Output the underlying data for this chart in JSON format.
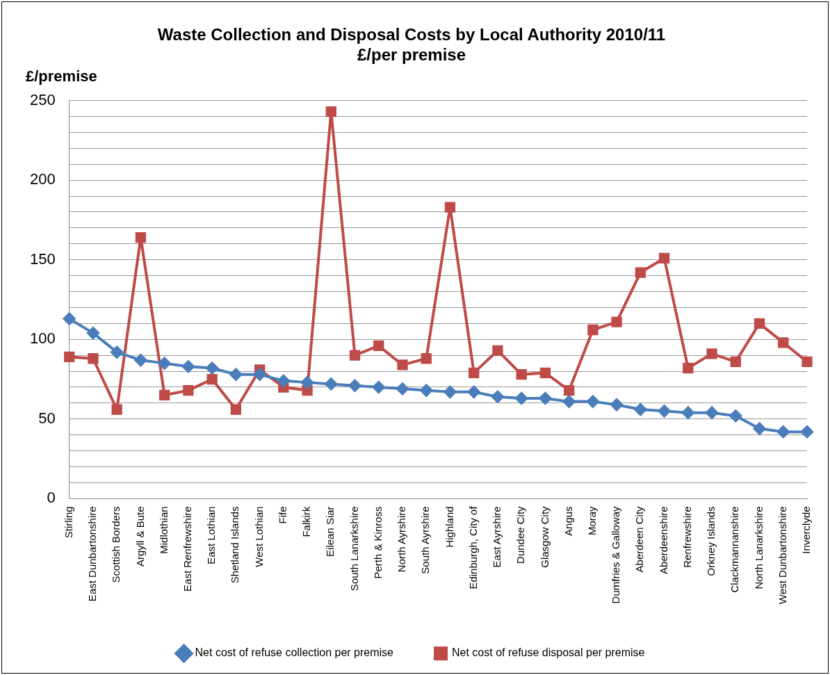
{
  "chart_data": {
    "type": "line",
    "title": [
      "Waste Collection and Disposal Costs by Local Authority 2010/11",
      "£/per premise"
    ],
    "ylabel": "£/premise",
    "categories": [
      "Stirling",
      "East Dunbartonshire",
      "Scottish Borders",
      "Argyll & Bute",
      "Midlothian",
      "East Renfrewshire",
      "East Lothian",
      "Shetland Islands",
      "West Lothian",
      "Fife",
      "Falkirk",
      "Eilean Siar",
      "South Lanarkshire",
      "Perth & Kinross",
      "North Ayrshire",
      "South Ayrshire",
      "Highland",
      "Edinburgh, City of",
      "East Ayrshire",
      "Dundee City",
      "Glasgow City",
      "Angus",
      "Moray",
      "Dumfries & Galloway",
      "Aberdeen City",
      "Aberdeenshire",
      "Renfrewshire",
      "Orkney Islands",
      "Clackmannanshire",
      "North Lanarkshire",
      "West Dunbartonshire",
      "Inverclyde"
    ],
    "series": [
      {
        "name": "Net cost of refuse collection per premise",
        "color": "#4a7ebb",
        "marker": "diamond",
        "values": [
          113,
          104,
          92,
          87,
          85,
          83,
          82,
          78,
          78,
          74,
          73,
          72,
          71,
          70,
          69,
          68,
          67,
          67,
          64,
          63,
          63,
          61,
          61,
          59,
          56,
          55,
          54,
          54,
          52,
          44,
          42,
          42
        ]
      },
      {
        "name": "Net cost of refuse disposal per premise",
        "color": "#be4b48",
        "marker": "square",
        "values": [
          89,
          88,
          56,
          164,
          65,
          68,
          75,
          56,
          81,
          70,
          68,
          243,
          90,
          96,
          84,
          88,
          183,
          79,
          93,
          78,
          79,
          68,
          106,
          111,
          142,
          151,
          82,
          91,
          86,
          110,
          98,
          86
        ]
      }
    ],
    "ylim": [
      0,
      250
    ],
    "yticks": [
      0,
      {
        "value": 10,
        "label": null
      },
      {
        "value": 20,
        "label": null
      },
      {
        "value": 30,
        "label": null
      },
      {
        "value": 40,
        "label": null
      },
      50,
      {
        "value": 60,
        "label": null
      },
      {
        "value": 70,
        "label": null
      },
      {
        "value": 80,
        "label": null
      },
      {
        "value": 90,
        "label": null
      },
      100,
      {
        "value": 110,
        "label": null
      },
      {
        "value": 120,
        "label": null
      },
      {
        "value": 130,
        "label": null
      },
      {
        "value": 140,
        "label": null
      },
      150,
      {
        "value": 160,
        "label": null
      },
      {
        "value": 170,
        "label": null
      },
      {
        "value": 180,
        "label": null
      },
      {
        "value": 190,
        "label": null
      },
      200,
      {
        "value": 210,
        "label": null
      },
      {
        "value": 220,
        "label": null
      },
      {
        "value": 230,
        "label": null
      },
      {
        "value": 240,
        "label": null
      },
      250
    ],
    "grid": "y",
    "legend": "bottom",
    "line_style": "solid"
  }
}
